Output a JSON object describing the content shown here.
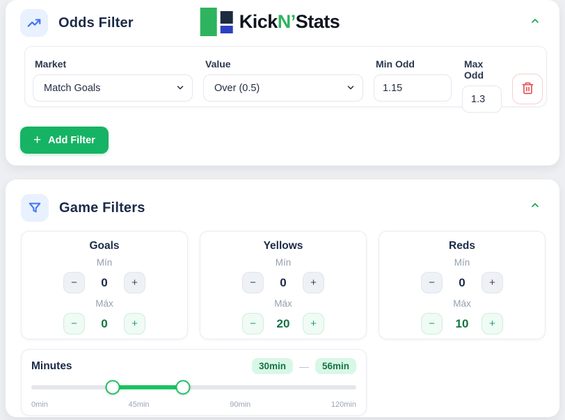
{
  "colors": {
    "page-bg": "#edeff2",
    "green": "#16b364",
    "green-bright": "#1cc261",
    "green-dark": "#157347",
    "green-badge-bg": "#d9f7e6",
    "green-soft-bg": "#effbf4",
    "green-soft-border": "#cdeeda",
    "navy": "#1c2b47",
    "label-gray": "#95a0b1",
    "tick-gray": "#9aa5b6",
    "border": "#e9ecf1",
    "red": "#e5484d",
    "red-border": "#f6cfcf",
    "blue": "#3f76f6",
    "blue-bg": "#e9f1fe",
    "logo-green": "#2eb45e",
    "logo-navy": "#1e2a3e",
    "logo-blue": "#2c41c0",
    "track": "#e4e6eb"
  },
  "odds_filter": {
    "title": "Odds Filter",
    "logo": {
      "kick": "Kick",
      "n": "N’",
      "stats": "Stats"
    },
    "row": {
      "market": {
        "label": "Market",
        "value": "Match Goals"
      },
      "value": {
        "label": "Value",
        "value": "Over (0.5)"
      },
      "min_odd": {
        "label": "Min Odd",
        "value": "1.15"
      },
      "max_odd": {
        "label": "Max Odd",
        "value": "1.3"
      }
    },
    "add_filter_plus": "+",
    "add_filter_label": "Add Filter"
  },
  "stepper": {
    "minus": "−",
    "plus": "+"
  },
  "game_filters": {
    "title": "Game Filters",
    "panels": [
      {
        "title": "Goals",
        "min_label": "Mín",
        "min_value": "0",
        "max_label": "Máx",
        "max_value": "0"
      },
      {
        "title": "Yellows",
        "min_label": "Mín",
        "min_value": "0",
        "max_label": "Máx",
        "max_value": "20"
      },
      {
        "title": "Reds",
        "min_label": "Mín",
        "min_value": "0",
        "max_label": "Máx",
        "max_value": "10"
      }
    ],
    "minutes": {
      "title": "Minutes",
      "from_badge": "30min",
      "separator": "—",
      "to_badge": "56min",
      "range_min": 0,
      "range_max": 120,
      "value_from": 30,
      "value_to": 56,
      "ticks": [
        "0min",
        "45min",
        "90min",
        "120min"
      ]
    }
  }
}
